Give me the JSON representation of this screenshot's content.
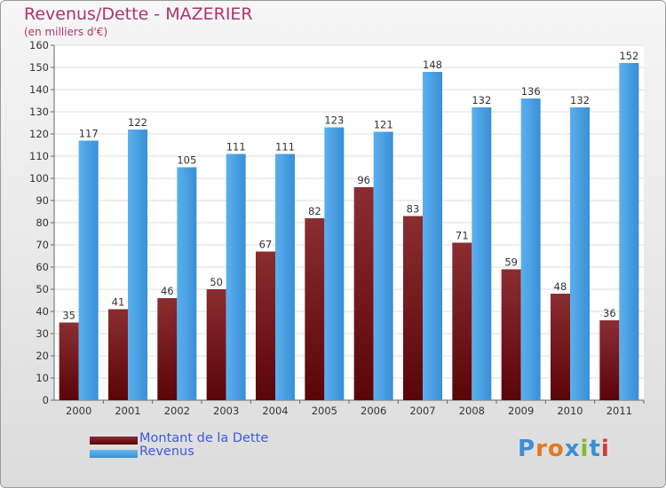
{
  "title": "Revenus/Dette - MAZERIER",
  "subtitle": "(en milliers d'€)",
  "logo_text": "Proxiti",
  "colors": {
    "dette": "#6b0f12",
    "revenus": "#4aa3e6",
    "title": "#b0336a",
    "legend_text": "#3a5bd9"
  },
  "chart_data": {
    "type": "bar",
    "title": "Revenus/Dette - MAZERIER",
    "subtitle": "(en milliers d'€)",
    "categories": [
      "2000",
      "2001",
      "2002",
      "2003",
      "2004",
      "2005",
      "2006",
      "2007",
      "2008",
      "2009",
      "2010",
      "2011"
    ],
    "series": [
      {
        "name": "Montant de la Dette",
        "values": [
          35,
          41,
          46,
          50,
          67,
          82,
          96,
          83,
          71,
          59,
          48,
          36
        ]
      },
      {
        "name": "Revenus",
        "values": [
          117,
          122,
          105,
          111,
          111,
          123,
          121,
          148,
          132,
          136,
          132,
          152
        ]
      }
    ],
    "ylim": [
      0,
      160
    ],
    "yticks": [
      0,
      10,
      20,
      30,
      40,
      50,
      60,
      70,
      80,
      90,
      100,
      110,
      120,
      130,
      140,
      150,
      160
    ],
    "grid": true,
    "legend": "bottom-left"
  }
}
